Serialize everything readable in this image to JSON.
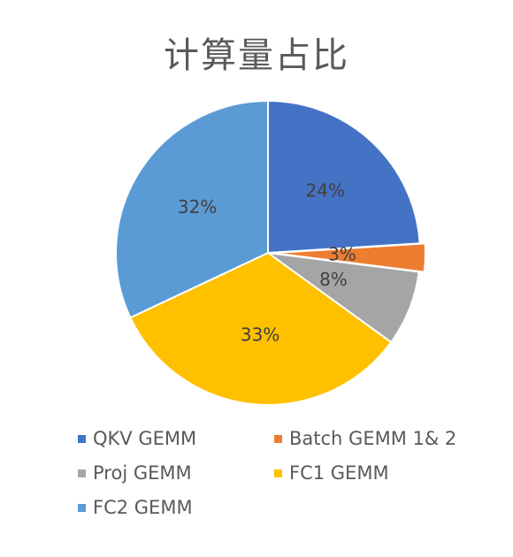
{
  "chart_data": {
    "type": "pie",
    "title": "计算量占比",
    "slices": [
      {
        "label": "QKV GEMM",
        "value": 24,
        "display": "24%",
        "color": "#4472C4"
      },
      {
        "label": "Batch GEMM 1& 2",
        "value": 3,
        "display": "3%",
        "color": "#ED7D31"
      },
      {
        "label": "Proj GEMM",
        "value": 8,
        "display": "8%",
        "color": "#A5A5A5"
      },
      {
        "label": "FC1 GEMM",
        "value": 33,
        "display": "33%",
        "color": "#FFC000"
      },
      {
        "label": "FC2 GEMM",
        "value": 32,
        "display": "32%",
        "color": "#5B9BD5"
      }
    ],
    "legend_placement": "bottom"
  }
}
